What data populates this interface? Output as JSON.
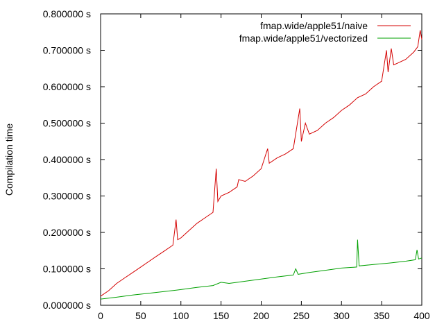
{
  "chart_data": {
    "type": "line",
    "title": "",
    "xlabel": "",
    "ylabel": "Compilation time",
    "xlim": [
      0,
      400
    ],
    "ylim": [
      0,
      0.8
    ],
    "x_ticks": [
      0,
      50,
      100,
      150,
      200,
      250,
      300,
      350,
      400
    ],
    "x_tick_labels": [
      "0",
      "50",
      "100",
      "150",
      "200",
      "250",
      "300",
      "350",
      "400"
    ],
    "y_ticks": [
      0,
      0.1,
      0.2,
      0.3,
      0.4,
      0.5,
      0.6,
      0.7,
      0.8
    ],
    "y_tick_labels": [
      "0.000000 s",
      "0.100000 s",
      "0.200000 s",
      "0.300000 s",
      "0.400000 s",
      "0.500000 s",
      "0.600000 s",
      "0.700000 s",
      "0.800000 s"
    ],
    "grid": false,
    "legend_position": "top-right",
    "series": [
      {
        "name": "fmap.wide/apple51/naive",
        "color": "#d40000",
        "x": [
          0,
          10,
          20,
          30,
          40,
          50,
          60,
          70,
          80,
          90,
          94,
          96,
          100,
          110,
          120,
          130,
          140,
          144,
          146,
          150,
          160,
          170,
          172,
          180,
          190,
          200,
          208,
          210,
          220,
          230,
          240,
          248,
          250,
          255,
          260,
          270,
          280,
          290,
          300,
          310,
          320,
          330,
          340,
          350,
          356,
          358,
          362,
          365,
          370,
          380,
          390,
          395,
          398,
          400
        ],
        "y": [
          0.025,
          0.04,
          0.06,
          0.075,
          0.09,
          0.105,
          0.12,
          0.135,
          0.15,
          0.165,
          0.235,
          0.18,
          0.185,
          0.205,
          0.225,
          0.24,
          0.255,
          0.375,
          0.285,
          0.3,
          0.31,
          0.325,
          0.345,
          0.34,
          0.355,
          0.375,
          0.43,
          0.39,
          0.405,
          0.415,
          0.43,
          0.54,
          0.45,
          0.5,
          0.47,
          0.48,
          0.5,
          0.515,
          0.535,
          0.55,
          0.57,
          0.58,
          0.6,
          0.615,
          0.7,
          0.64,
          0.705,
          0.66,
          0.665,
          0.675,
          0.695,
          0.71,
          0.755,
          0.73
        ]
      },
      {
        "name": "fmap.wide/apple51/vectorized",
        "color": "#00a000",
        "x": [
          0,
          20,
          40,
          60,
          80,
          100,
          120,
          140,
          150,
          160,
          180,
          200,
          220,
          240,
          243,
          246,
          260,
          280,
          300,
          319,
          320,
          322,
          340,
          360,
          380,
          392,
          394,
          396,
          400
        ],
        "y": [
          0.017,
          0.022,
          0.028,
          0.033,
          0.038,
          0.043,
          0.049,
          0.054,
          0.063,
          0.06,
          0.066,
          0.072,
          0.078,
          0.083,
          0.1,
          0.085,
          0.09,
          0.096,
          0.102,
          0.105,
          0.18,
          0.108,
          0.112,
          0.116,
          0.121,
          0.125,
          0.152,
          0.127,
          0.13
        ]
      }
    ]
  }
}
